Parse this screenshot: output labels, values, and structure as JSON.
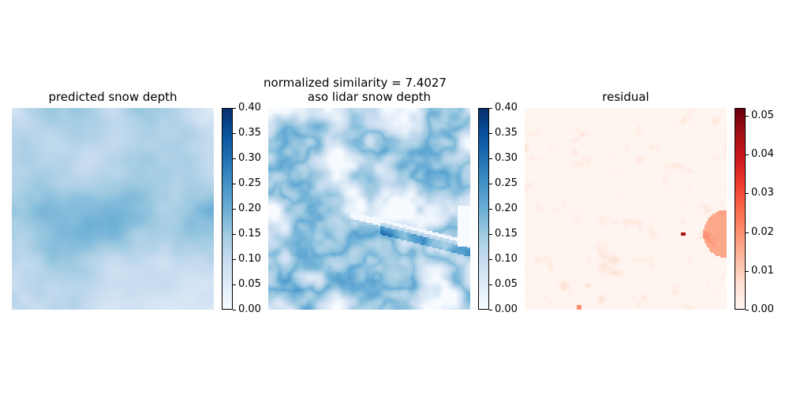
{
  "suptitle": "normalized similarity = 7.4027",
  "chart_data": [
    {
      "type": "heatmap",
      "title": "predicted snow depth",
      "colormap": "Blues",
      "colorbar": {
        "range": [
          0.0,
          0.4
        ],
        "ticks": [
          "0.00",
          "0.05",
          "0.10",
          "0.15",
          "0.20",
          "0.25",
          "0.30",
          "0.35",
          "0.40"
        ]
      },
      "field": {
        "mean": 0.12,
        "min": 0.02,
        "max": 0.22
      }
    },
    {
      "type": "heatmap",
      "title": "aso lidar snow depth",
      "colormap": "Blues",
      "colorbar": {
        "range": [
          0.0,
          0.4
        ],
        "ticks": [
          "0.00",
          "0.05",
          "0.10",
          "0.15",
          "0.20",
          "0.25",
          "0.30",
          "0.35",
          "0.40"
        ]
      },
      "field": {
        "mean": 0.14,
        "min": 0.0,
        "max": 0.4
      }
    },
    {
      "type": "heatmap",
      "title": "residual",
      "colormap": "Reds",
      "colorbar": {
        "range": [
          0.0,
          0.052
        ],
        "ticks": [
          "0.00",
          "0.01",
          "0.02",
          "0.03",
          "0.04",
          "0.05"
        ]
      },
      "field": {
        "mean": 0.002,
        "min": 0.0,
        "max": 0.052
      }
    }
  ]
}
